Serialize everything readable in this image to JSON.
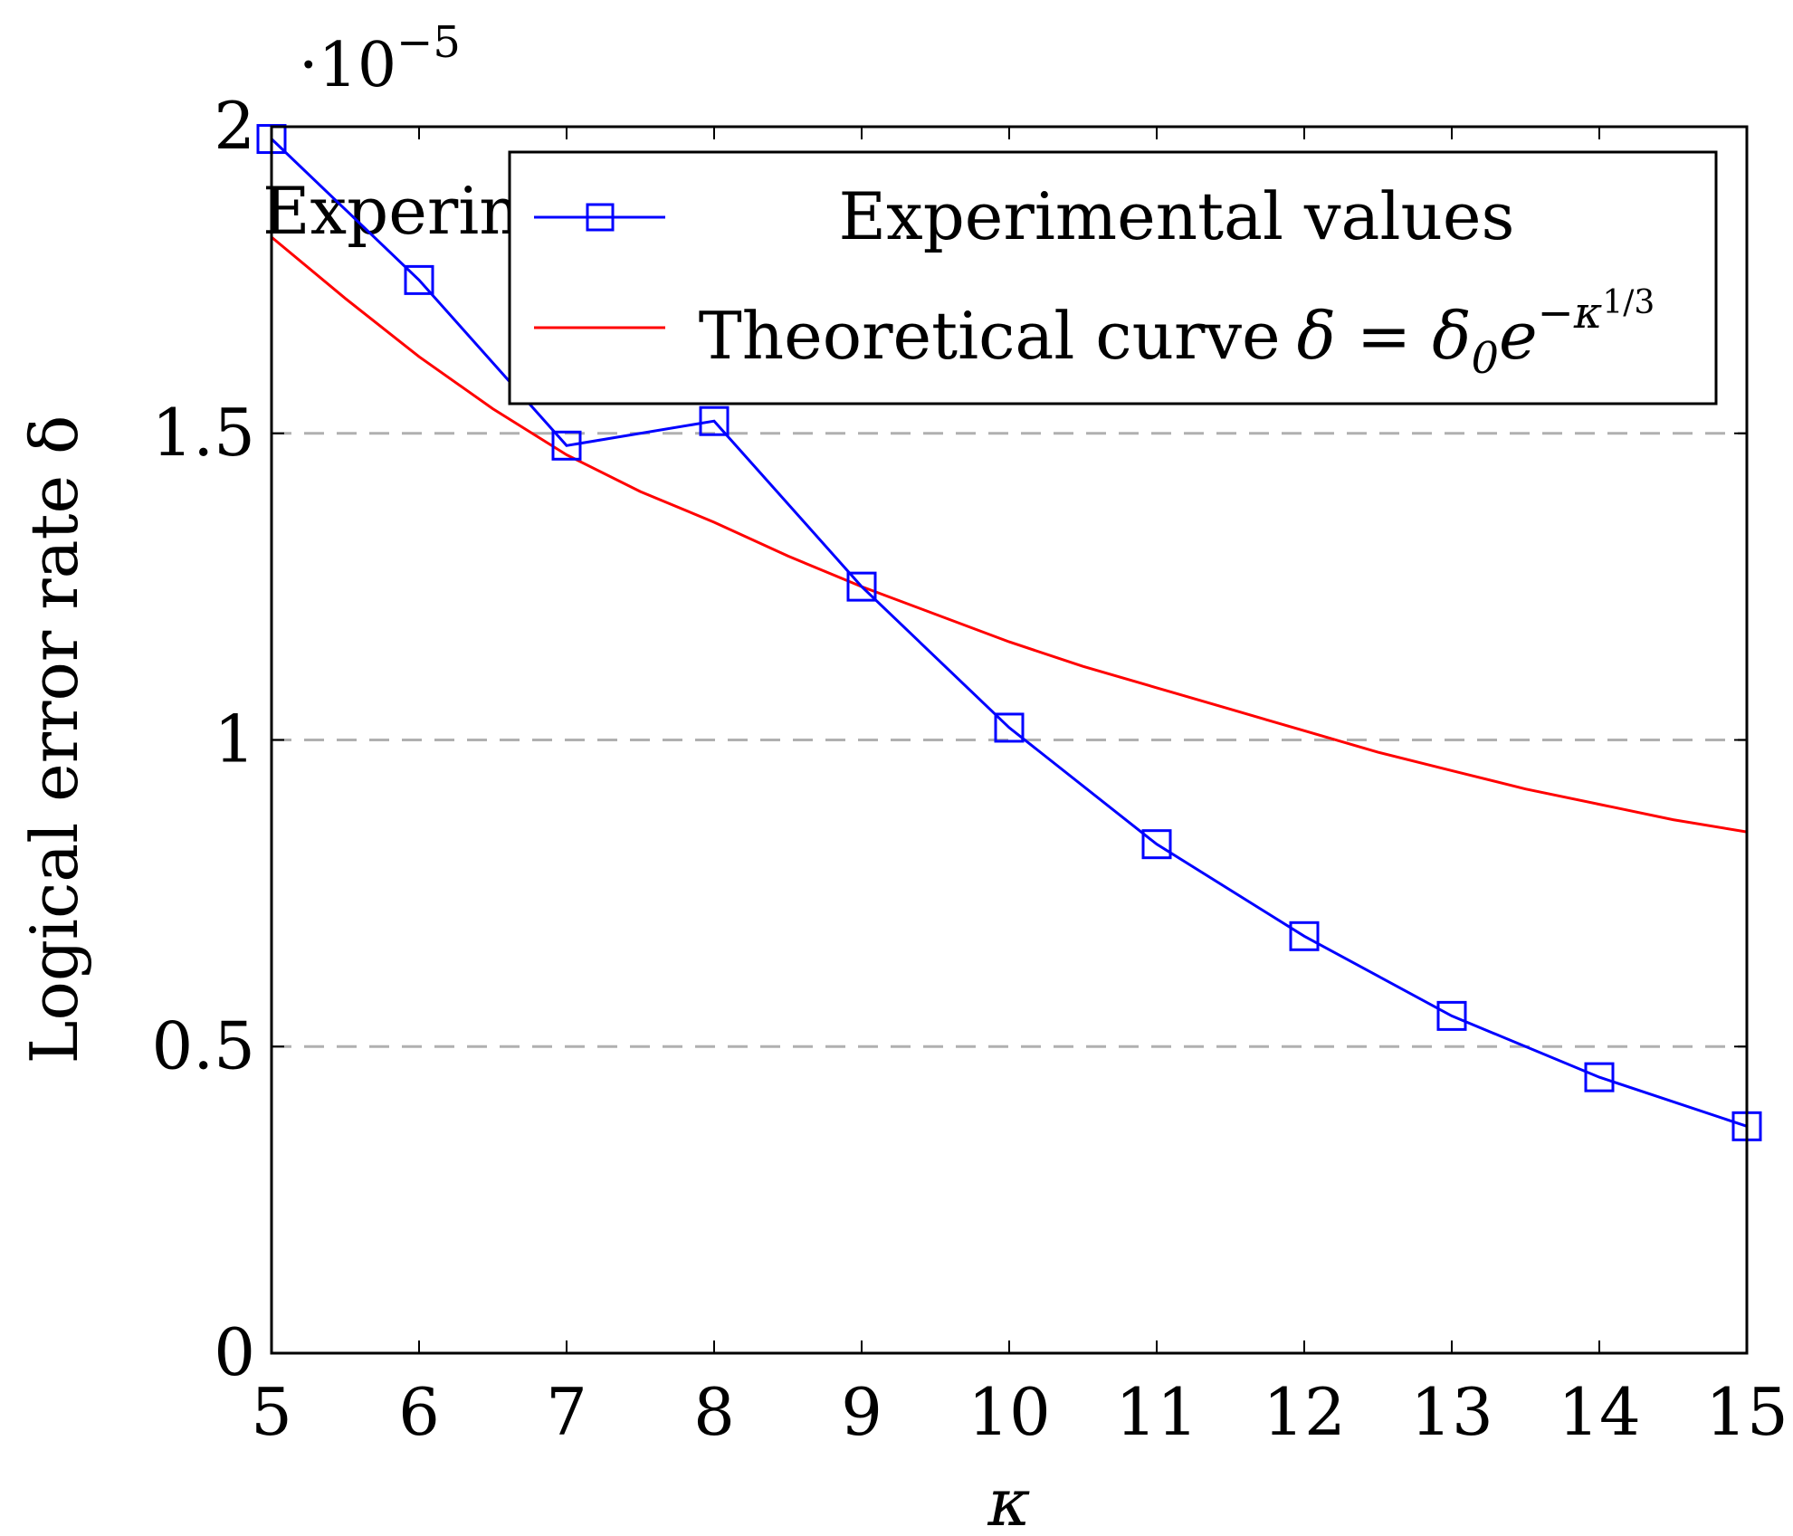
{
  "chart_data": {
    "type": "line",
    "title": "",
    "xlabel": "κ",
    "ylabel": "Logical error rate δ",
    "y_scale_label": "·10",
    "y_scale_exponent": "−5",
    "xlim": [
      5,
      15
    ],
    "ylim": [
      0,
      2
    ],
    "x_ticks": [
      5,
      6,
      7,
      8,
      9,
      10,
      11,
      12,
      13,
      14,
      15
    ],
    "x_tick_labels": [
      "5",
      "6",
      "7",
      "8",
      "9",
      "10",
      "11",
      "12",
      "13",
      "14",
      "15"
    ],
    "y_ticks": [
      0,
      0.5,
      1,
      1.5,
      2
    ],
    "y_tick_labels": [
      "0",
      "0.5",
      "1",
      "1.5",
      "2"
    ],
    "grid": {
      "y_major": true,
      "style": "dashed",
      "color": "#b0b0b0"
    },
    "legend_position": "top-right",
    "series": [
      {
        "name": "Experimental values",
        "kind": "line-markers",
        "marker": "square",
        "color": "#0000ff",
        "x": [
          5,
          6,
          7,
          8,
          9,
          10,
          11,
          12,
          13,
          14,
          15
        ],
        "values": [
          1.98,
          1.75,
          1.48,
          1.52,
          1.25,
          1.02,
          0.83,
          0.68,
          0.55,
          0.45,
          0.37
        ]
      },
      {
        "name": "Theoretical curve",
        "kind": "curve",
        "formula_prefix": "δ = δ",
        "formula_sub": "0",
        "formula_base": "e",
        "formula_sup": "−κ",
        "formula_sup_sup": "1/3",
        "color": "#ff0000",
        "x": [
          5,
          5.5,
          6,
          6.5,
          7,
          7.5,
          8,
          8.5,
          9,
          9.5,
          10,
          10.5,
          11,
          11.5,
          12,
          12.5,
          13,
          13.5,
          14,
          14.5,
          15
        ],
        "values": [
          1.82,
          1.72,
          1.625,
          1.54,
          1.465,
          1.405,
          1.355,
          1.3,
          1.25,
          1.205,
          1.16,
          1.12,
          1.085,
          1.05,
          1.015,
          0.98,
          0.95,
          0.92,
          0.895,
          0.87,
          0.85
        ]
      }
    ],
    "overlay_text": "Experim"
  }
}
